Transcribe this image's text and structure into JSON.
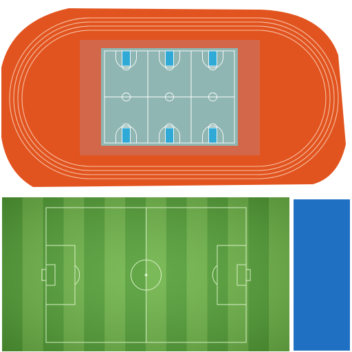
{
  "scene": {
    "background": "#ffffff",
    "courts_per_row": 3,
    "court_rows": 2
  },
  "colors": {
    "track": "#e2541f",
    "track_lane_line": "#f6c2a6",
    "infield": "#d2674a",
    "court_surface": "#8fb6b2",
    "court_key": "#2fa9d6",
    "court_line": "#ffffff",
    "turf_dark": "#4e9a33",
    "turf_light": "#6db348",
    "turf_line": "#d8f0c6",
    "pool": "#1f6fc2"
  }
}
